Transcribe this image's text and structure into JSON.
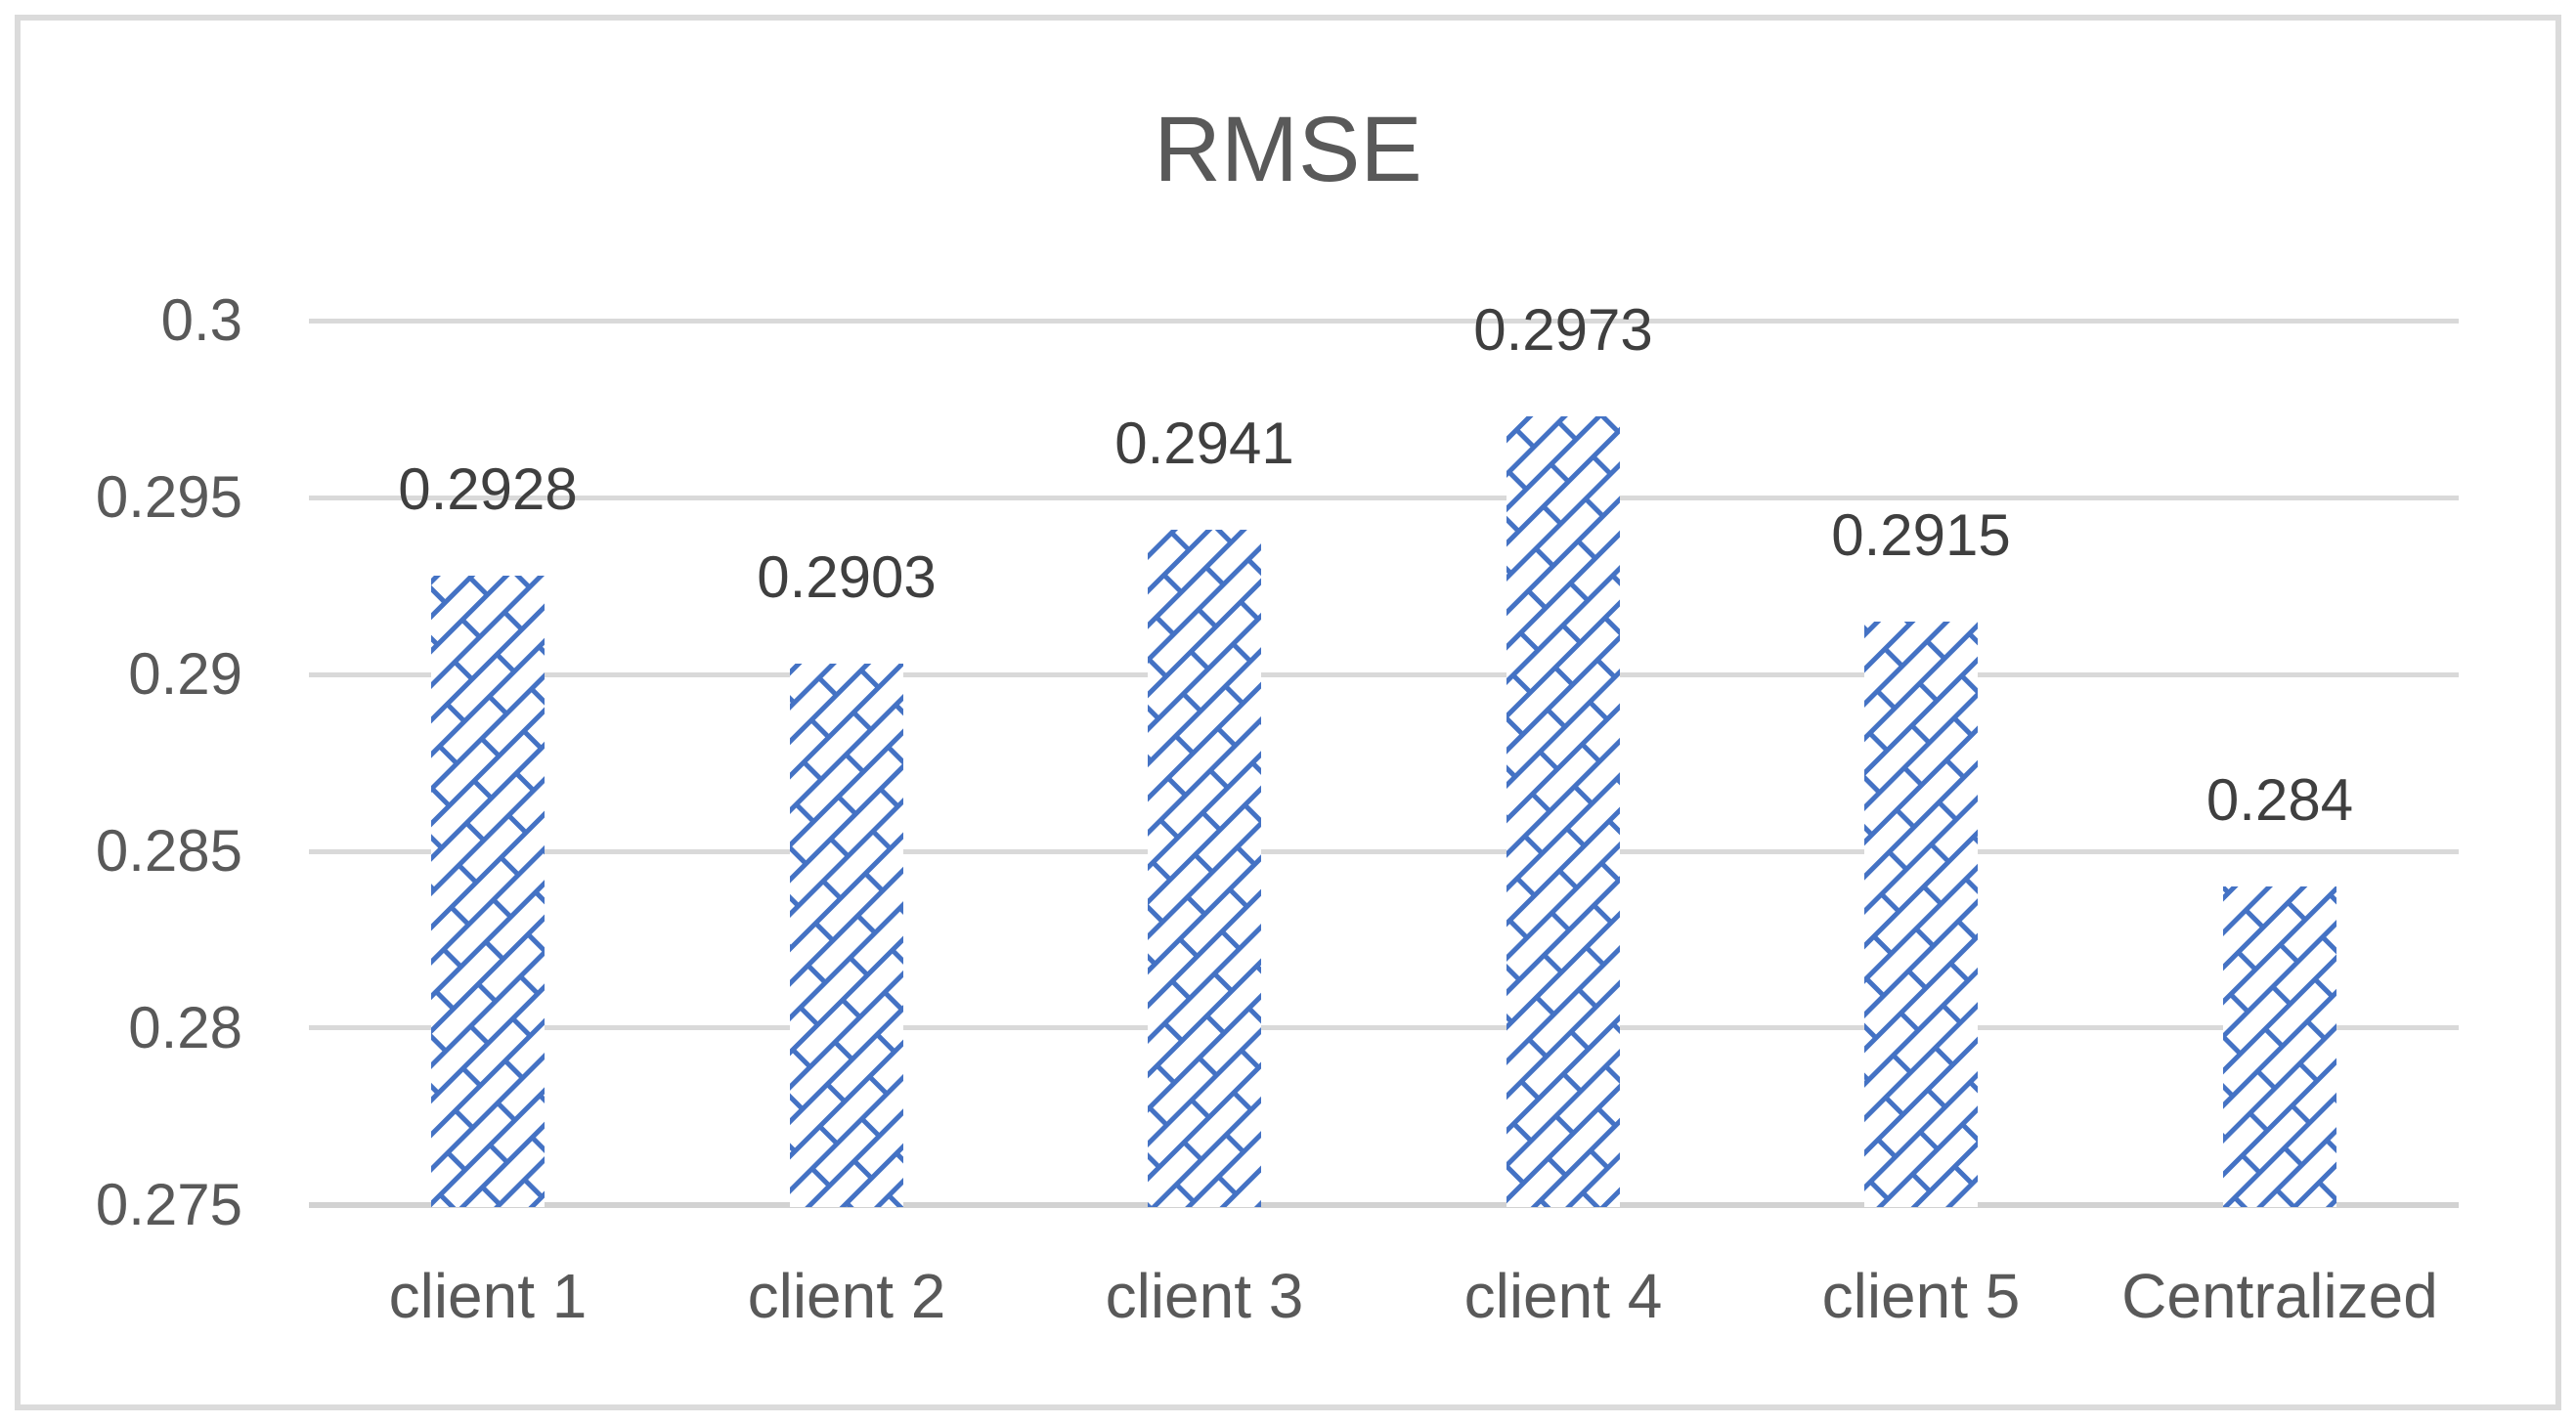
{
  "chart": {
    "colors": {
      "bar_pattern_blue": "#4472C4",
      "gridline_gray": "#D9D9D9",
      "axis_line_gray": "#D2D2D2",
      "title_text_gray": "#595959",
      "tick_text_gray": "#595959",
      "data_label_gray": "#3F3F3F",
      "frame_border_gray": "#DBDBDB"
    }
  },
  "chart_data": {
    "type": "bar",
    "title": "RMSE",
    "categories": [
      "client 1",
      "client 2",
      "client 3",
      "client 4",
      "client 5",
      "Centralized"
    ],
    "values": [
      0.2928,
      0.2903,
      0.2941,
      0.2973,
      0.2915,
      0.284
    ],
    "data_labels": [
      "0.2928",
      "0.2903",
      "0.2941",
      "0.2973",
      "0.2915",
      "0.284"
    ],
    "xlabel": "",
    "ylabel": "",
    "ylim": [
      0.275,
      0.3
    ],
    "ytick_step": 0.005,
    "yticks": [
      "0.3",
      "0.295",
      "0.29",
      "0.285",
      "0.28",
      "0.275"
    ],
    "grid": true,
    "legend": false,
    "bar_fill_style": "blue diagonal-brick pattern on white"
  }
}
